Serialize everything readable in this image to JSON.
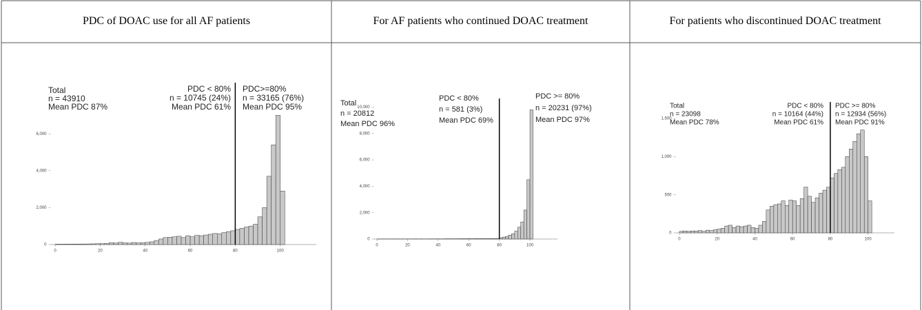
{
  "chart_data": [
    {
      "type": "histogram",
      "title": "PDC of DOAC use for all AF patients",
      "bins": [
        0,
        2,
        4,
        6,
        8,
        10,
        12,
        14,
        16,
        18,
        20,
        22,
        24,
        26,
        28,
        30,
        32,
        34,
        36,
        38,
        40,
        42,
        44,
        46,
        48,
        50,
        52,
        54,
        56,
        58,
        60,
        62,
        64,
        66,
        68,
        70,
        72,
        74,
        76,
        78,
        80,
        82,
        84,
        86,
        88,
        90,
        92,
        94,
        96,
        98,
        100,
        102
      ],
      "values": [
        20,
        20,
        20,
        25,
        25,
        30,
        30,
        35,
        40,
        45,
        50,
        60,
        100,
        80,
        120,
        90,
        80,
        110,
        90,
        100,
        120,
        150,
        220,
        300,
        380,
        400,
        420,
        450,
        380,
        480,
        420,
        500,
        480,
        520,
        560,
        600,
        580,
        650,
        700,
        750,
        820,
        880,
        950,
        1000,
        1100,
        1500,
        2000,
        3700,
        5400,
        7000,
        2900
      ],
      "color": "#c8c8c8",
      "xlim": [
        -2,
        116
      ],
      "xticks": [
        0,
        20,
        40,
        60,
        80,
        100
      ],
      "ylim": [
        0,
        7400
      ],
      "yticks": [
        0,
        {
          "value": 2000,
          "label": "2,000"
        },
        {
          "value": 4000,
          "label": "4,000"
        },
        {
          "value": 6000,
          "label": "6,000"
        }
      ],
      "threshold": 80,
      "annotations": [
        [
          "Total",
          "n = 43910",
          "Mean PDC 87%"
        ],
        [
          "PDC < 80%",
          "n = 10745 (24%)",
          "Mean PDC 61%"
        ],
        [
          "PDC>=80%",
          "n = 33165 (76%)",
          "Mean PDC 95%"
        ]
      ]
    },
    {
      "type": "histogram",
      "title": "For AF patients who continued DOAC treatment",
      "bins": [
        0,
        2,
        4,
        6,
        8,
        10,
        12,
        14,
        16,
        18,
        20,
        22,
        24,
        26,
        28,
        30,
        32,
        34,
        36,
        38,
        40,
        42,
        44,
        46,
        48,
        50,
        52,
        54,
        56,
        58,
        60,
        62,
        64,
        66,
        68,
        70,
        72,
        74,
        76,
        78,
        80,
        82,
        84,
        86,
        88,
        90,
        92,
        94,
        96,
        98,
        100,
        102
      ],
      "values": [
        10,
        10,
        10,
        10,
        10,
        10,
        10,
        10,
        10,
        10,
        10,
        10,
        15,
        10,
        15,
        10,
        10,
        15,
        15,
        15,
        15,
        15,
        20,
        20,
        20,
        20,
        20,
        25,
        25,
        25,
        25,
        25,
        30,
        30,
        30,
        35,
        35,
        40,
        40,
        45,
        100,
        150,
        200,
        300,
        400,
        600,
        900,
        1300,
        2200,
        4500,
        9800
      ],
      "color": "#c8c8c8",
      "xlim": [
        -2,
        118
      ],
      "xticks": [
        0,
        20,
        40,
        60,
        80,
        100
      ],
      "ylim": [
        0,
        10500
      ],
      "yticks": [
        0,
        {
          "value": 2000,
          "label": "2,000"
        },
        {
          "value": 4000,
          "label": "4,000"
        },
        {
          "value": 6000,
          "label": "6,000"
        },
        {
          "value": 8000,
          "label": "8,000"
        },
        {
          "value": 10000,
          "label": "10,000"
        }
      ],
      "threshold": 80,
      "annotations": [
        [
          "Total",
          "n = 20812",
          "Mean PDC 96%"
        ],
        [
          "PDC < 80%",
          "n = 581 (3%)",
          "Mean PDC 69%"
        ],
        [
          "PDC >= 80%",
          "n = 20231 (97%)",
          "Mean PDC 97%"
        ]
      ]
    },
    {
      "type": "histogram",
      "title": "For patients who discontinued DOAC treatment",
      "bins": [
        0,
        2,
        4,
        6,
        8,
        10,
        12,
        14,
        16,
        18,
        20,
        22,
        24,
        26,
        28,
        30,
        32,
        34,
        36,
        38,
        40,
        42,
        44,
        46,
        48,
        50,
        52,
        54,
        56,
        58,
        60,
        62,
        64,
        66,
        68,
        70,
        72,
        74,
        76,
        78,
        80,
        82,
        84,
        86,
        88,
        90,
        92,
        94,
        96,
        98,
        100,
        102
      ],
      "values": [
        20,
        25,
        20,
        25,
        25,
        30,
        20,
        35,
        30,
        40,
        50,
        60,
        90,
        100,
        70,
        90,
        80,
        90,
        100,
        70,
        60,
        100,
        150,
        300,
        350,
        370,
        380,
        420,
        360,
        430,
        420,
        360,
        450,
        600,
        480,
        400,
        460,
        520,
        560,
        600,
        720,
        780,
        830,
        860,
        1000,
        1100,
        1200,
        1300,
        1350,
        1000,
        420
      ],
      "color": "#c8c8c8",
      "xlim": [
        -2,
        114
      ],
      "xticks": [
        0,
        20,
        40,
        60,
        80,
        100
      ],
      "ylim": [
        0,
        1600
      ],
      "yticks": [
        0,
        500,
        {
          "value": 1000,
          "label": "1,000"
        },
        {
          "value": 1500,
          "label": "1,500"
        }
      ],
      "threshold": 80,
      "annotations": [
        [
          "Total",
          "n = 23098",
          "Mean PDC 78%"
        ],
        [
          "PDC < 80%",
          "n = 10164 (44%)",
          "Mean PDC 61%"
        ],
        [
          "PDC >= 80%",
          "n = 12934 (56%)",
          "Mean PDC 91%"
        ]
      ]
    }
  ]
}
